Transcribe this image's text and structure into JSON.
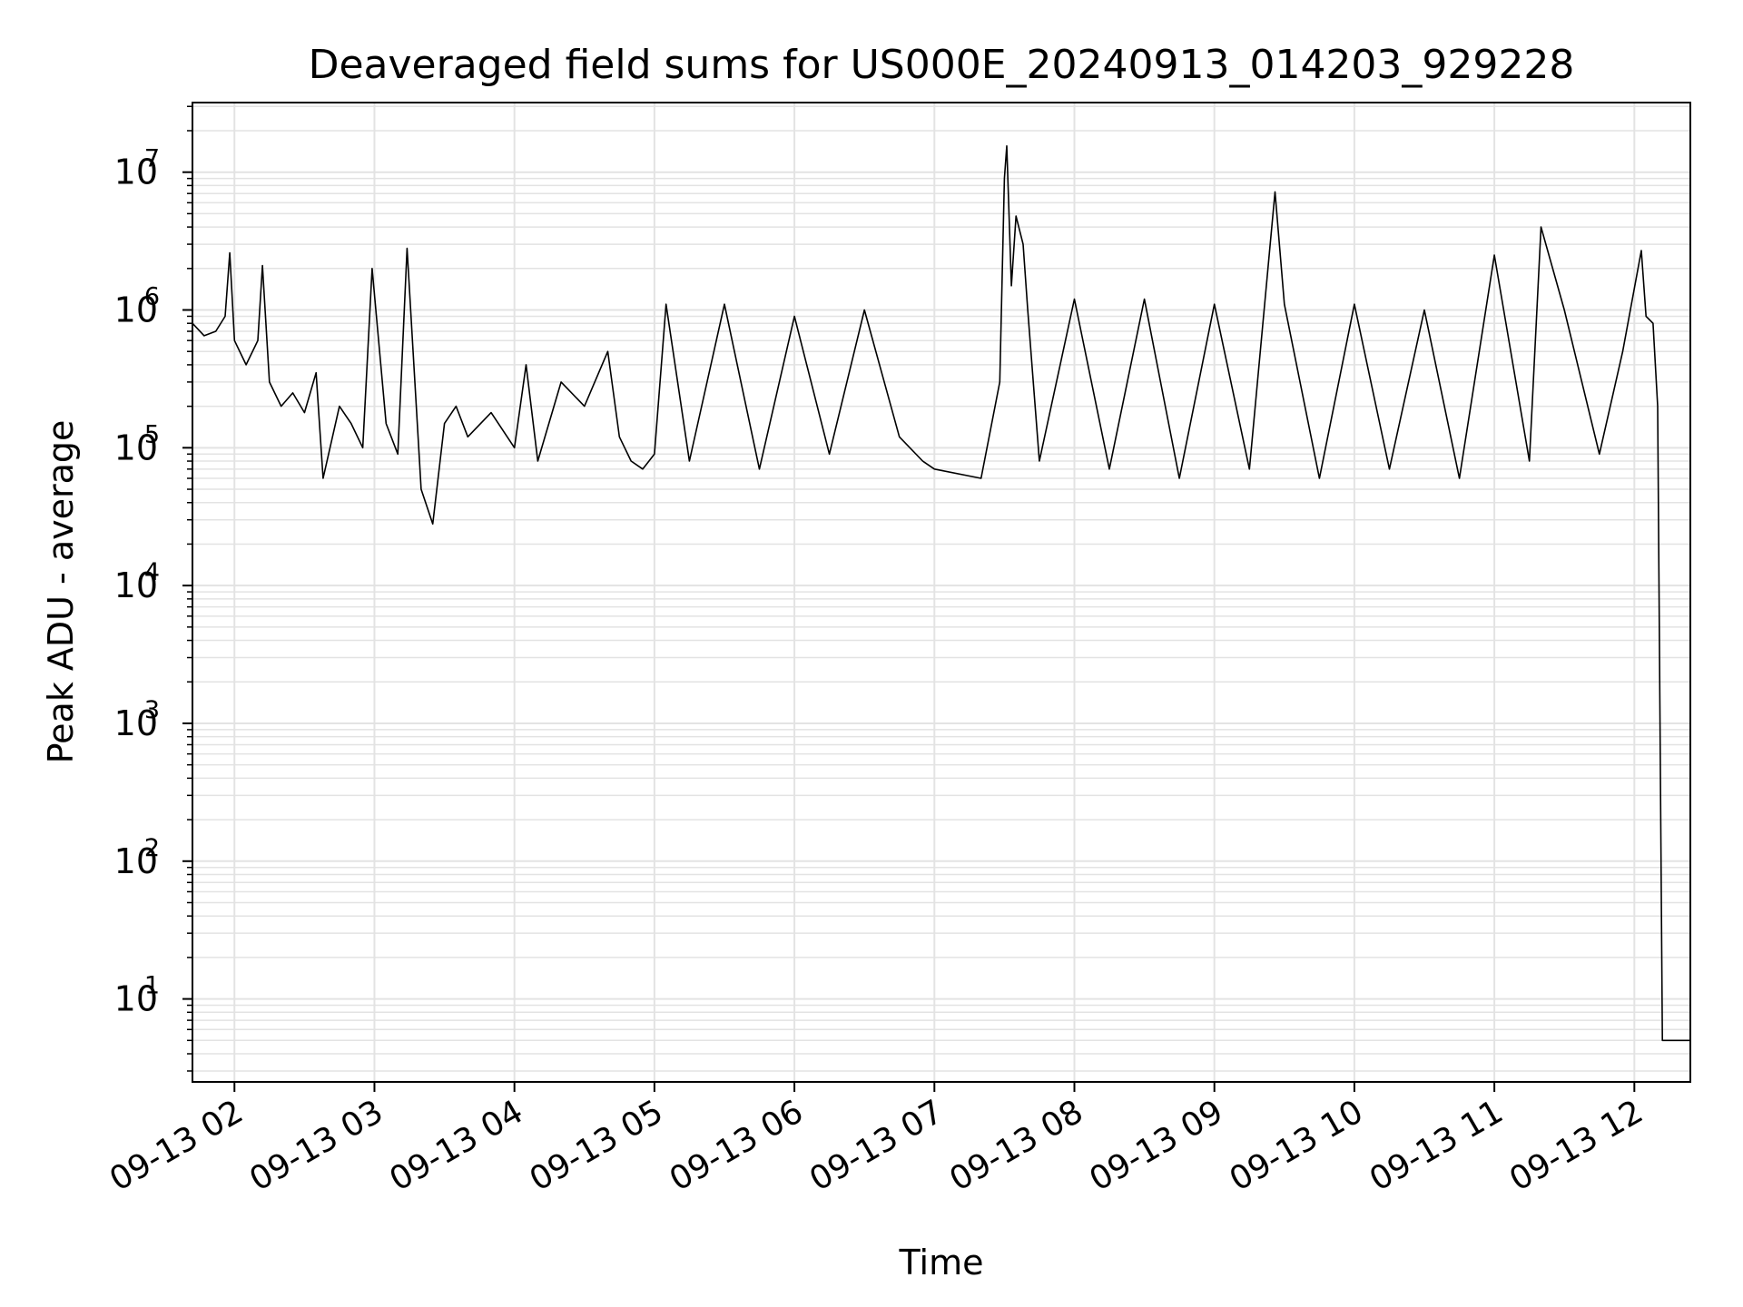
{
  "chart_data": {
    "type": "line",
    "title": "Deaveraged field sums for US000E_20240913_014203_929228",
    "xlabel": "Time",
    "ylabel": "Peak ADU - average",
    "yscale": "log",
    "ylim": [
      2.5,
      32000000
    ],
    "xlim": [
      "2024-09-13 01:42",
      "2024-09-13 12:24"
    ],
    "grid": true,
    "line_color": "#000000",
    "grid_color": "#e3e3e3",
    "x_ticks": [
      {
        "t": "2024-09-13 02:00",
        "label": "09-13 02"
      },
      {
        "t": "2024-09-13 03:00",
        "label": "09-13 03"
      },
      {
        "t": "2024-09-13 04:00",
        "label": "09-13 04"
      },
      {
        "t": "2024-09-13 05:00",
        "label": "09-13 05"
      },
      {
        "t": "2024-09-13 06:00",
        "label": "09-13 06"
      },
      {
        "t": "2024-09-13 07:00",
        "label": "09-13 07"
      },
      {
        "t": "2024-09-13 08:00",
        "label": "09-13 08"
      },
      {
        "t": "2024-09-13 09:00",
        "label": "09-13 09"
      },
      {
        "t": "2024-09-13 10:00",
        "label": "09-13 10"
      },
      {
        "t": "2024-09-13 11:00",
        "label": "09-13 11"
      },
      {
        "t": "2024-09-13 12:00",
        "label": "09-13 12"
      }
    ],
    "y_ticks": [
      {
        "value": 10,
        "base": "10",
        "exp": "1"
      },
      {
        "value": 100,
        "base": "10",
        "exp": "2"
      },
      {
        "value": 1000,
        "base": "10",
        "exp": "3"
      },
      {
        "value": 10000,
        "base": "10",
        "exp": "4"
      },
      {
        "value": 100000,
        "base": "10",
        "exp": "5"
      },
      {
        "value": 1000000,
        "base": "10",
        "exp": "6"
      },
      {
        "value": 10000000,
        "base": "10",
        "exp": "7"
      }
    ],
    "series": [
      {
        "points": [
          [
            "2024-09-13 01:42",
            800000
          ],
          [
            "2024-09-13 01:47",
            650000
          ],
          [
            "2024-09-13 01:52",
            700000
          ],
          [
            "2024-09-13 01:56",
            900000
          ],
          [
            "2024-09-13 01:58",
            2600000
          ],
          [
            "2024-09-13 02:00",
            600000
          ],
          [
            "2024-09-13 02:05",
            400000
          ],
          [
            "2024-09-13 02:10",
            600000
          ],
          [
            "2024-09-13 02:12",
            2100000
          ],
          [
            "2024-09-13 02:15",
            300000
          ],
          [
            "2024-09-13 02:20",
            200000
          ],
          [
            "2024-09-13 02:25",
            250000
          ],
          [
            "2024-09-13 02:30",
            180000
          ],
          [
            "2024-09-13 02:35",
            350000
          ],
          [
            "2024-09-13 02:38",
            60000
          ],
          [
            "2024-09-13 02:45",
            200000
          ],
          [
            "2024-09-13 02:50",
            150000
          ],
          [
            "2024-09-13 02:55",
            100000
          ],
          [
            "2024-09-13 02:59",
            2000000
          ],
          [
            "2024-09-13 03:05",
            150000
          ],
          [
            "2024-09-13 03:10",
            90000
          ],
          [
            "2024-09-13 03:14",
            2800000
          ],
          [
            "2024-09-13 03:20",
            50000
          ],
          [
            "2024-09-13 03:25",
            28000
          ],
          [
            "2024-09-13 03:30",
            150000
          ],
          [
            "2024-09-13 03:35",
            200000
          ],
          [
            "2024-09-13 03:40",
            120000
          ],
          [
            "2024-09-13 03:50",
            180000
          ],
          [
            "2024-09-13 04:00",
            100000
          ],
          [
            "2024-09-13 04:05",
            400000
          ],
          [
            "2024-09-13 04:10",
            80000
          ],
          [
            "2024-09-13 04:20",
            300000
          ],
          [
            "2024-09-13 04:30",
            200000
          ],
          [
            "2024-09-13 04:40",
            500000
          ],
          [
            "2024-09-13 04:45",
            120000
          ],
          [
            "2024-09-13 04:50",
            80000
          ],
          [
            "2024-09-13 04:55",
            70000
          ],
          [
            "2024-09-13 05:00",
            90000
          ],
          [
            "2024-09-13 05:05",
            1100000
          ],
          [
            "2024-09-13 05:15",
            80000
          ],
          [
            "2024-09-13 05:30",
            1100000
          ],
          [
            "2024-09-13 05:45",
            70000
          ],
          [
            "2024-09-13 06:00",
            900000
          ],
          [
            "2024-09-13 06:15",
            90000
          ],
          [
            "2024-09-13 06:30",
            1000000
          ],
          [
            "2024-09-13 06:45",
            120000
          ],
          [
            "2024-09-13 06:55",
            80000
          ],
          [
            "2024-09-13 07:00",
            70000
          ],
          [
            "2024-09-13 07:20",
            60000
          ],
          [
            "2024-09-13 07:28",
            300000
          ],
          [
            "2024-09-13 07:30",
            9000000
          ],
          [
            "2024-09-13 07:31",
            15500000
          ],
          [
            "2024-09-13 07:33",
            1500000
          ],
          [
            "2024-09-13 07:35",
            4800000
          ],
          [
            "2024-09-13 07:38",
            3000000
          ],
          [
            "2024-09-13 07:40",
            1000000
          ],
          [
            "2024-09-13 07:45",
            80000
          ],
          [
            "2024-09-13 08:00",
            1200000
          ],
          [
            "2024-09-13 08:15",
            70000
          ],
          [
            "2024-09-13 08:30",
            1200000
          ],
          [
            "2024-09-13 08:45",
            60000
          ],
          [
            "2024-09-13 09:00",
            1100000
          ],
          [
            "2024-09-13 09:15",
            70000
          ],
          [
            "2024-09-13 09:26",
            7200000
          ],
          [
            "2024-09-13 09:30",
            1100000
          ],
          [
            "2024-09-13 09:45",
            60000
          ],
          [
            "2024-09-13 10:00",
            1100000
          ],
          [
            "2024-09-13 10:15",
            70000
          ],
          [
            "2024-09-13 10:30",
            1000000
          ],
          [
            "2024-09-13 10:45",
            60000
          ],
          [
            "2024-09-13 11:00",
            2500000
          ],
          [
            "2024-09-13 11:15",
            80000
          ],
          [
            "2024-09-13 11:20",
            4000000
          ],
          [
            "2024-09-13 11:30",
            1000000
          ],
          [
            "2024-09-13 11:45",
            90000
          ],
          [
            "2024-09-13 11:55",
            500000
          ],
          [
            "2024-09-13 12:03",
            2700000
          ],
          [
            "2024-09-13 12:05",
            900000
          ],
          [
            "2024-09-13 12:08",
            800000
          ],
          [
            "2024-09-13 12:10",
            200000
          ],
          [
            "2024-09-13 12:12",
            5
          ],
          [
            "2024-09-13 12:24",
            5
          ]
        ]
      }
    ]
  }
}
